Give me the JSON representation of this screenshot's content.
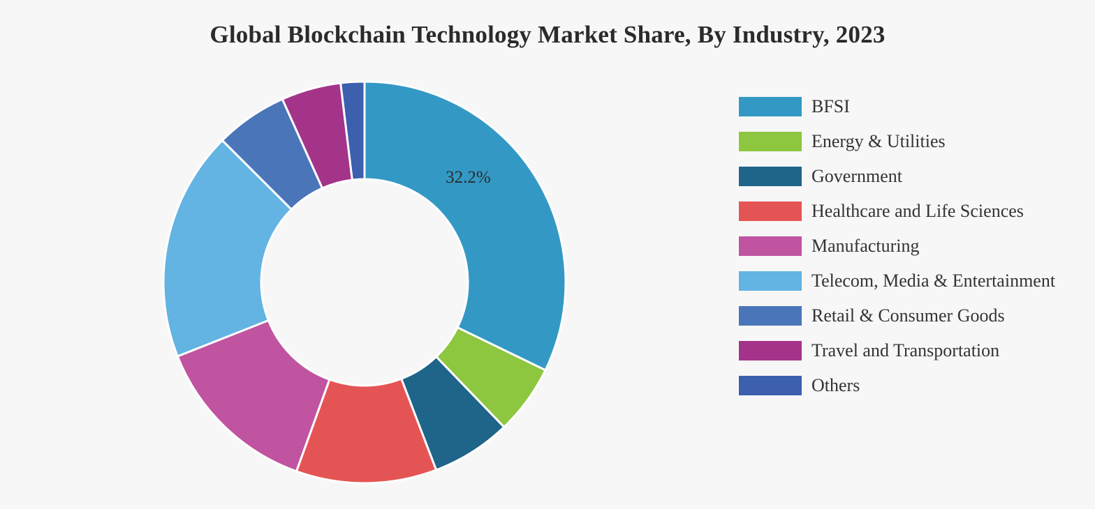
{
  "chart_data": {
    "type": "pie",
    "donut": true,
    "title": "Global Blockchain Technology Market Share, By Industry, 2023",
    "legend_position": "right",
    "series": [
      {
        "name": "BFSI",
        "value": 32.2,
        "color": "#3399c4",
        "label": "32.2%"
      },
      {
        "name": "Energy & Utilities",
        "value": 5.6,
        "color": "#8dc63f",
        "label": ""
      },
      {
        "name": "Government",
        "value": 6.4,
        "color": "#1f6489",
        "label": ""
      },
      {
        "name": "Healthcare and Life Sciences",
        "value": 11.3,
        "color": "#e55454",
        "label": ""
      },
      {
        "name": "Manufacturing",
        "value": 13.5,
        "color": "#c054a0",
        "label": ""
      },
      {
        "name": "Telecom, Media & Entertainment",
        "value": 18.5,
        "color": "#63b3e3",
        "label": ""
      },
      {
        "name": "Retail & Consumer Goods",
        "value": 5.8,
        "color": "#4a75b9",
        "label": ""
      },
      {
        "name": "Travel and Transportation",
        "value": 4.8,
        "color": "#a4348a",
        "label": ""
      },
      {
        "name": "Others",
        "value": 1.9,
        "color": "#3c5fae",
        "label": ""
      }
    ]
  }
}
